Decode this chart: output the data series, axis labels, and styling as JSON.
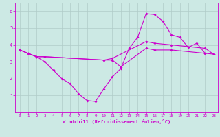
{
  "xlabel": "Windchill (Refroidissement éolien,°C)",
  "xlim": [
    -0.5,
    23.5
  ],
  "ylim": [
    0,
    6.5
  ],
  "xticks": [
    0,
    1,
    2,
    3,
    4,
    5,
    6,
    7,
    8,
    9,
    10,
    11,
    12,
    13,
    14,
    15,
    16,
    17,
    18,
    19,
    20,
    21,
    22,
    23
  ],
  "yticks": [
    1,
    2,
    3,
    4,
    5,
    6
  ],
  "bg_color": "#cce9e4",
  "line_color": "#cc00cc",
  "grid_color": "#b0ccc8",
  "line1_x": [
    0,
    1,
    2,
    3,
    4,
    5,
    6,
    7,
    8,
    9,
    10,
    11,
    12,
    13,
    14,
    15,
    16,
    17,
    18,
    19,
    20,
    21,
    22
  ],
  "line1_y": [
    3.7,
    3.5,
    3.3,
    3.0,
    2.5,
    2.0,
    1.7,
    1.1,
    0.7,
    0.65,
    1.4,
    2.1,
    2.6,
    3.8,
    4.45,
    5.85,
    5.8,
    5.4,
    4.6,
    4.45,
    3.85,
    4.1,
    3.5
  ],
  "line2_x": [
    0,
    1,
    2,
    3,
    10,
    11,
    12,
    15,
    16,
    18,
    22,
    23
  ],
  "line2_y": [
    3.7,
    3.5,
    3.3,
    3.3,
    3.1,
    3.1,
    2.7,
    3.8,
    3.7,
    3.7,
    3.5,
    3.45
  ],
  "line3_x": [
    0,
    1,
    2,
    3,
    10,
    11,
    15,
    16,
    18,
    22,
    23
  ],
  "line3_y": [
    3.7,
    3.5,
    3.3,
    3.3,
    3.1,
    3.2,
    4.2,
    4.1,
    4.0,
    3.8,
    3.45
  ]
}
